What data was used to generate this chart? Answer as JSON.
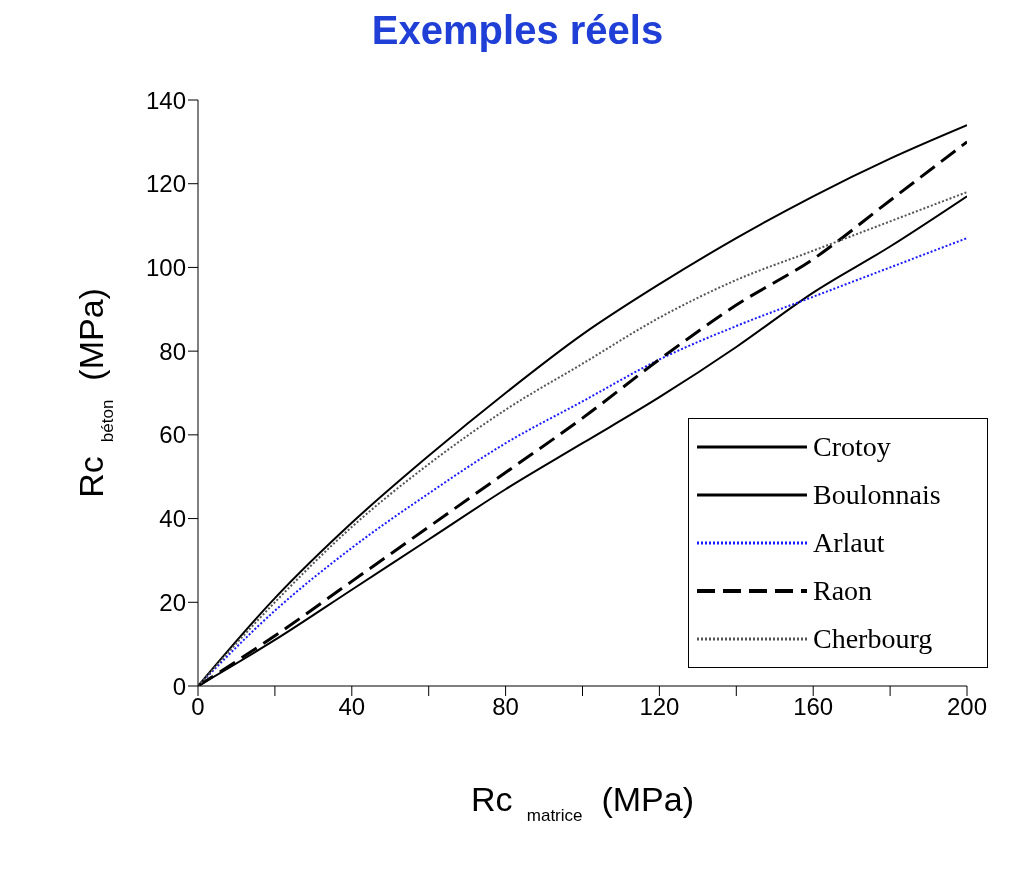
{
  "chart_data": {
    "type": "line",
    "title": "Exemples réels",
    "xlabel": "Rc $_{matrice}$ (MPa)",
    "ylabel": "Rc $_{béton}$ (MPa)",
    "x": [
      0,
      20,
      40,
      60,
      80,
      100,
      120,
      140,
      160,
      180,
      200
    ],
    "series": [
      {
        "name": "Crotoy",
        "color": "#000000",
        "line_style": "solid",
        "values": [
          0,
          11,
          23,
          35,
          47,
          58,
          69,
          81,
          94,
          105,
          117
        ]
      },
      {
        "name": "Boulonnais",
        "color": "#000000",
        "line_style": "solid",
        "values": [
          0,
          21,
          39,
          55,
          70,
          84,
          96,
          107,
          117,
          126,
          134
        ]
      },
      {
        "name": "Arlaut",
        "color": "#1a1aff",
        "line_style": "dotted",
        "values": [
          0,
          18,
          33,
          46,
          58,
          68,
          78,
          86,
          93,
          100,
          107
        ]
      },
      {
        "name": "Raon",
        "color": "#000000",
        "line_style": "dashed",
        "values": [
          0,
          12,
          25,
          38,
          51,
          64,
          78,
          91,
          102,
          116,
          130
        ]
      },
      {
        "name": "Cherbourg",
        "color": "#555555",
        "line_style": "dotted",
        "values": [
          0,
          20,
          38,
          53,
          66,
          77,
          88,
          97,
          104,
          111,
          118
        ]
      }
    ],
    "xlim": [
      0,
      200
    ],
    "xticks": [
      0,
      {
        "value": 20,
        "label": null
      },
      40,
      {
        "value": 60,
        "label": null
      },
      80,
      {
        "value": 100,
        "label": null
      },
      120,
      {
        "value": 140,
        "label": null
      },
      160,
      {
        "value": 180,
        "label": null
      },
      200
    ],
    "ylim": [
      0,
      140
    ],
    "yticks": [
      0,
      20,
      40,
      60,
      80,
      100,
      120,
      140
    ],
    "grid": false,
    "legend": "bottom right",
    "marker": "none"
  }
}
